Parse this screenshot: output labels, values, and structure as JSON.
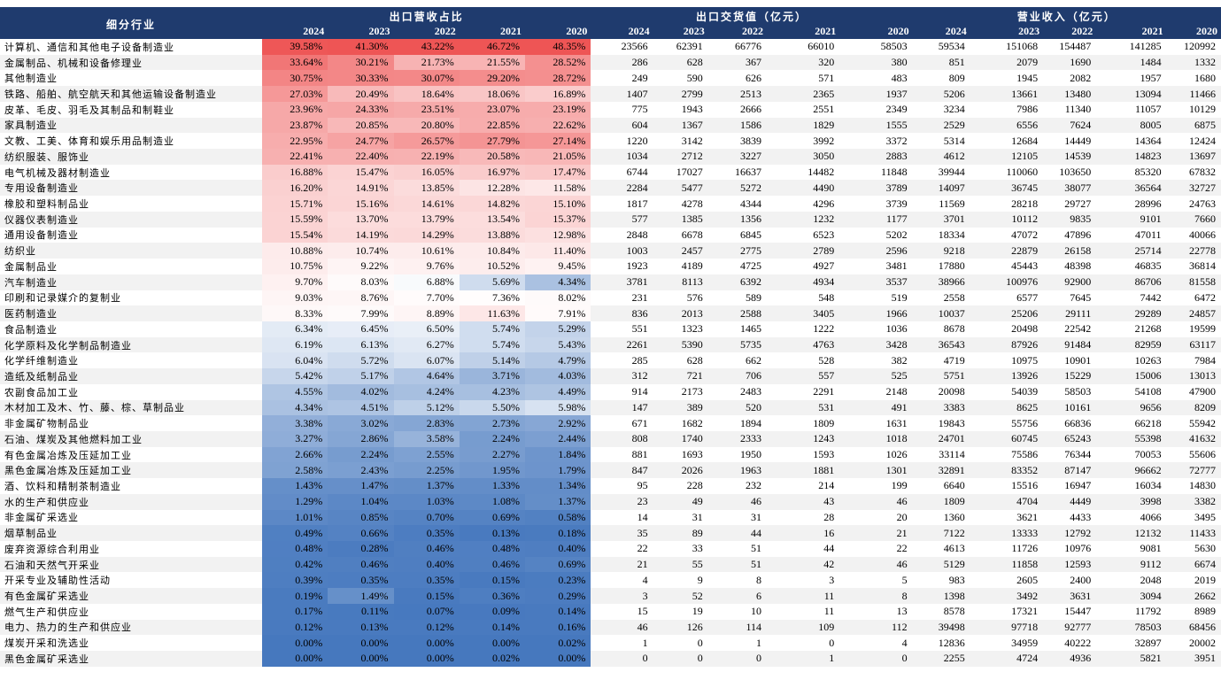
{
  "header": {
    "industry_label": "细分行业",
    "groups": [
      "出口营收占比",
      "出口交货值（亿元）",
      "营业收入（亿元）"
    ],
    "years": [
      "2024",
      "2023",
      "2022",
      "2021",
      "2020"
    ]
  },
  "rows": [
    {
      "name": "计算机、通信和其他电子设备制造业",
      "pct": [
        "39.58%",
        "41.30%",
        "43.22%",
        "46.72%",
        "48.35%"
      ],
      "exp": [
        "23566",
        "62391",
        "66776",
        "66010",
        "58503"
      ],
      "rev": [
        "59534",
        "151068",
        "154487",
        "141285",
        "120992"
      ]
    },
    {
      "name": "金属制品、机械和设备修理业",
      "pct": [
        "33.64%",
        "30.21%",
        "21.73%",
        "21.55%",
        "28.52%"
      ],
      "exp": [
        "286",
        "628",
        "367",
        "320",
        "380"
      ],
      "rev": [
        "851",
        "2079",
        "1690",
        "1484",
        "1332"
      ]
    },
    {
      "name": "其他制造业",
      "pct": [
        "30.75%",
        "30.33%",
        "30.07%",
        "29.20%",
        "28.72%"
      ],
      "exp": [
        "249",
        "590",
        "626",
        "571",
        "483"
      ],
      "rev": [
        "809",
        "1945",
        "2082",
        "1957",
        "1680"
      ]
    },
    {
      "name": "铁路、船舶、航空航天和其他运输设备制造业",
      "pct": [
        "27.03%",
        "20.49%",
        "18.64%",
        "18.06%",
        "16.89%"
      ],
      "exp": [
        "1407",
        "2799",
        "2513",
        "2365",
        "1937"
      ],
      "rev": [
        "5206",
        "13661",
        "13480",
        "13094",
        "11466"
      ]
    },
    {
      "name": "皮革、毛皮、羽毛及其制品和制鞋业",
      "pct": [
        "23.96%",
        "24.33%",
        "23.51%",
        "23.07%",
        "23.19%"
      ],
      "exp": [
        "775",
        "1943",
        "2666",
        "2551",
        "2349"
      ],
      "rev": [
        "3234",
        "7986",
        "11340",
        "11057",
        "10129"
      ]
    },
    {
      "name": "家具制造业",
      "pct": [
        "23.87%",
        "20.85%",
        "20.80%",
        "22.85%",
        "22.62%"
      ],
      "exp": [
        "604",
        "1367",
        "1586",
        "1829",
        "1555"
      ],
      "rev": [
        "2529",
        "6556",
        "7624",
        "8005",
        "6875"
      ]
    },
    {
      "name": "文教、工美、体育和娱乐用品制造业",
      "pct": [
        "22.95%",
        "24.77%",
        "26.57%",
        "27.79%",
        "27.14%"
      ],
      "exp": [
        "1220",
        "3142",
        "3839",
        "3992",
        "3372"
      ],
      "rev": [
        "5314",
        "12684",
        "14449",
        "14364",
        "12424"
      ]
    },
    {
      "name": "纺织服装、服饰业",
      "pct": [
        "22.41%",
        "22.40%",
        "22.19%",
        "20.58%",
        "21.05%"
      ],
      "exp": [
        "1034",
        "2712",
        "3227",
        "3050",
        "2883"
      ],
      "rev": [
        "4612",
        "12105",
        "14539",
        "14823",
        "13697"
      ]
    },
    {
      "name": "电气机械及器材制造业",
      "pct": [
        "16.88%",
        "15.47%",
        "16.05%",
        "16.97%",
        "17.47%"
      ],
      "exp": [
        "6744",
        "17027",
        "16637",
        "14482",
        "11848"
      ],
      "rev": [
        "39944",
        "110060",
        "103650",
        "85320",
        "67832"
      ]
    },
    {
      "name": "专用设备制造业",
      "pct": [
        "16.20%",
        "14.91%",
        "13.85%",
        "12.28%",
        "11.58%"
      ],
      "exp": [
        "2284",
        "5477",
        "5272",
        "4490",
        "3789"
      ],
      "rev": [
        "14097",
        "36745",
        "38077",
        "36564",
        "32727"
      ]
    },
    {
      "name": "橡胶和塑料制品业",
      "pct": [
        "15.71%",
        "15.16%",
        "14.61%",
        "14.82%",
        "15.10%"
      ],
      "exp": [
        "1817",
        "4278",
        "4344",
        "4296",
        "3739"
      ],
      "rev": [
        "11569",
        "28218",
        "29727",
        "28996",
        "24763"
      ]
    },
    {
      "name": "仪器仪表制造业",
      "pct": [
        "15.59%",
        "13.70%",
        "13.79%",
        "13.54%",
        "15.37%"
      ],
      "exp": [
        "577",
        "1385",
        "1356",
        "1232",
        "1177"
      ],
      "rev": [
        "3701",
        "10112",
        "9835",
        "9101",
        "7660"
      ]
    },
    {
      "name": "通用设备制造业",
      "pct": [
        "15.54%",
        "14.19%",
        "14.29%",
        "13.88%",
        "12.98%"
      ],
      "exp": [
        "2848",
        "6678",
        "6845",
        "6523",
        "5202"
      ],
      "rev": [
        "18334",
        "47072",
        "47896",
        "47011",
        "40066"
      ]
    },
    {
      "name": "纺织业",
      "pct": [
        "10.88%",
        "10.74%",
        "10.61%",
        "10.84%",
        "11.40%"
      ],
      "exp": [
        "1003",
        "2457",
        "2775",
        "2789",
        "2596"
      ],
      "rev": [
        "9218",
        "22879",
        "26158",
        "25714",
        "22778"
      ]
    },
    {
      "name": "金属制品业",
      "pct": [
        "10.75%",
        "9.22%",
        "9.76%",
        "10.52%",
        "9.45%"
      ],
      "exp": [
        "1923",
        "4189",
        "4725",
        "4927",
        "3481"
      ],
      "rev": [
        "17880",
        "45443",
        "48398",
        "46835",
        "36814"
      ]
    },
    {
      "name": "汽车制造业",
      "pct": [
        "9.70%",
        "8.03%",
        "6.88%",
        "5.69%",
        "4.34%"
      ],
      "exp": [
        "3781",
        "8113",
        "6392",
        "4934",
        "3537"
      ],
      "rev": [
        "38966",
        "100976",
        "92900",
        "86706",
        "81558"
      ]
    },
    {
      "name": "印刷和记录媒介的复制业",
      "pct": [
        "9.03%",
        "8.76%",
        "7.70%",
        "7.36%",
        "8.02%"
      ],
      "exp": [
        "231",
        "576",
        "589",
        "548",
        "519"
      ],
      "rev": [
        "2558",
        "6577",
        "7645",
        "7442",
        "6472"
      ]
    },
    {
      "name": "医药制造业",
      "pct": [
        "8.33%",
        "7.99%",
        "8.89%",
        "11.63%",
        "7.91%"
      ],
      "exp": [
        "836",
        "2013",
        "2588",
        "3405",
        "1966"
      ],
      "rev": [
        "10037",
        "25206",
        "29111",
        "29289",
        "24857"
      ]
    },
    {
      "name": "食品制造业",
      "pct": [
        "6.34%",
        "6.45%",
        "6.50%",
        "5.74%",
        "5.29%"
      ],
      "exp": [
        "551",
        "1323",
        "1465",
        "1222",
        "1036"
      ],
      "rev": [
        "8678",
        "20498",
        "22542",
        "21268",
        "19599"
      ]
    },
    {
      "name": "化学原料及化学制品制造业",
      "pct": [
        "6.19%",
        "6.13%",
        "6.27%",
        "5.74%",
        "5.43%"
      ],
      "exp": [
        "2261",
        "5390",
        "5735",
        "4763",
        "3428"
      ],
      "rev": [
        "36543",
        "87926",
        "91484",
        "82959",
        "63117"
      ]
    },
    {
      "name": "化学纤维制造业",
      "pct": [
        "6.04%",
        "5.72%",
        "6.07%",
        "5.14%",
        "4.79%"
      ],
      "exp": [
        "285",
        "628",
        "662",
        "528",
        "382"
      ],
      "rev": [
        "4719",
        "10975",
        "10901",
        "10263",
        "7984"
      ]
    },
    {
      "name": "造纸及纸制品业",
      "pct": [
        "5.42%",
        "5.17%",
        "4.64%",
        "3.71%",
        "4.03%"
      ],
      "exp": [
        "312",
        "721",
        "706",
        "557",
        "525"
      ],
      "rev": [
        "5751",
        "13926",
        "15229",
        "15006",
        "13013"
      ]
    },
    {
      "name": "农副食品加工业",
      "pct": [
        "4.55%",
        "4.02%",
        "4.24%",
        "4.23%",
        "4.49%"
      ],
      "exp": [
        "914",
        "2173",
        "2483",
        "2291",
        "2148"
      ],
      "rev": [
        "20098",
        "54039",
        "58503",
        "54108",
        "47900"
      ]
    },
    {
      "name": "木材加工及木、竹、藤、棕、草制品业",
      "pct": [
        "4.34%",
        "4.51%",
        "5.12%",
        "5.50%",
        "5.98%"
      ],
      "exp": [
        "147",
        "389",
        "520",
        "531",
        "491"
      ],
      "rev": [
        "3383",
        "8625",
        "10161",
        "9656",
        "8209"
      ]
    },
    {
      "name": "非金属矿物制品业",
      "pct": [
        "3.38%",
        "3.02%",
        "2.83%",
        "2.73%",
        "2.92%"
      ],
      "exp": [
        "671",
        "1682",
        "1894",
        "1809",
        "1631"
      ],
      "rev": [
        "19843",
        "55756",
        "66836",
        "66218",
        "55942"
      ]
    },
    {
      "name": "石油、煤炭及其他燃料加工业",
      "pct": [
        "3.27%",
        "2.86%",
        "3.58%",
        "2.24%",
        "2.44%"
      ],
      "exp": [
        "808",
        "1740",
        "2333",
        "1243",
        "1018"
      ],
      "rev": [
        "24701",
        "60745",
        "65243",
        "55398",
        "41632"
      ]
    },
    {
      "name": "有色金属冶炼及压延加工业",
      "pct": [
        "2.66%",
        "2.24%",
        "2.55%",
        "2.27%",
        "1.84%"
      ],
      "exp": [
        "881",
        "1693",
        "1950",
        "1593",
        "1026"
      ],
      "rev": [
        "33114",
        "75586",
        "76344",
        "70053",
        "55606"
      ]
    },
    {
      "name": "黑色金属冶炼及压延加工业",
      "pct": [
        "2.58%",
        "2.43%",
        "2.25%",
        "1.95%",
        "1.79%"
      ],
      "exp": [
        "847",
        "2026",
        "1963",
        "1881",
        "1301"
      ],
      "rev": [
        "32891",
        "83352",
        "87147",
        "96662",
        "72777"
      ]
    },
    {
      "name": "酒、饮料和精制茶制造业",
      "pct": [
        "1.43%",
        "1.47%",
        "1.37%",
        "1.33%",
        "1.34%"
      ],
      "exp": [
        "95",
        "228",
        "232",
        "214",
        "199"
      ],
      "rev": [
        "6640",
        "15516",
        "16947",
        "16034",
        "14830"
      ]
    },
    {
      "name": "水的生产和供应业",
      "pct": [
        "1.29%",
        "1.04%",
        "1.03%",
        "1.08%",
        "1.37%"
      ],
      "exp": [
        "23",
        "49",
        "46",
        "43",
        "46"
      ],
      "rev": [
        "1809",
        "4704",
        "4449",
        "3998",
        "3382"
      ]
    },
    {
      "name": "非金属矿采选业",
      "pct": [
        "1.01%",
        "0.85%",
        "0.70%",
        "0.69%",
        "0.58%"
      ],
      "exp": [
        "14",
        "31",
        "31",
        "28",
        "20"
      ],
      "rev": [
        "1360",
        "3621",
        "4433",
        "4066",
        "3495"
      ]
    },
    {
      "name": "烟草制品业",
      "pct": [
        "0.49%",
        "0.66%",
        "0.35%",
        "0.13%",
        "0.18%"
      ],
      "exp": [
        "35",
        "89",
        "44",
        "16",
        "21"
      ],
      "rev": [
        "7122",
        "13333",
        "12792",
        "12132",
        "11433"
      ]
    },
    {
      "name": "废弃资源综合利用业",
      "pct": [
        "0.48%",
        "0.28%",
        "0.46%",
        "0.48%",
        "0.40%"
      ],
      "exp": [
        "22",
        "33",
        "51",
        "44",
        "22"
      ],
      "rev": [
        "4613",
        "11726",
        "10976",
        "9081",
        "5630"
      ]
    },
    {
      "name": "石油和天然气开采业",
      "pct": [
        "0.42%",
        "0.46%",
        "0.40%",
        "0.46%",
        "0.69%"
      ],
      "exp": [
        "21",
        "55",
        "51",
        "42",
        "46"
      ],
      "rev": [
        "5129",
        "11858",
        "12593",
        "9112",
        "6674"
      ]
    },
    {
      "name": "开采专业及辅助性活动",
      "pct": [
        "0.39%",
        "0.35%",
        "0.35%",
        "0.15%",
        "0.23%"
      ],
      "exp": [
        "4",
        "9",
        "8",
        "3",
        "5"
      ],
      "rev": [
        "983",
        "2605",
        "2400",
        "2048",
        "2019"
      ]
    },
    {
      "name": "有色金属矿采选业",
      "pct": [
        "0.19%",
        "1.49%",
        "0.15%",
        "0.36%",
        "0.29%"
      ],
      "exp": [
        "3",
        "52",
        "6",
        "11",
        "8"
      ],
      "rev": [
        "1398",
        "3492",
        "3631",
        "3094",
        "2662"
      ]
    },
    {
      "name": "燃气生产和供应业",
      "pct": [
        "0.17%",
        "0.11%",
        "0.07%",
        "0.09%",
        "0.14%"
      ],
      "exp": [
        "15",
        "19",
        "10",
        "11",
        "13"
      ],
      "rev": [
        "8578",
        "17321",
        "15447",
        "11792",
        "8989"
      ]
    },
    {
      "name": "电力、热力的生产和供应业",
      "pct": [
        "0.12%",
        "0.13%",
        "0.12%",
        "0.14%",
        "0.16%"
      ],
      "exp": [
        "46",
        "126",
        "114",
        "109",
        "112"
      ],
      "rev": [
        "39498",
        "97718",
        "92777",
        "78503",
        "68456"
      ]
    },
    {
      "name": "煤炭开采和洗选业",
      "pct": [
        "0.00%",
        "0.00%",
        "0.00%",
        "0.00%",
        "0.02%"
      ],
      "exp": [
        "1",
        "0",
        "1",
        "0",
        "4"
      ],
      "rev": [
        "12836",
        "34959",
        "40222",
        "32897",
        "20002"
      ]
    },
    {
      "name": "黑色金属矿采选业",
      "pct": [
        "0.00%",
        "0.00%",
        "0.00%",
        "0.02%",
        "0.00%"
      ],
      "exp": [
        "0",
        "0",
        "0",
        "1",
        "0"
      ],
      "rev": [
        "2255",
        "4724",
        "4936",
        "5821",
        "3951"
      ]
    }
  ]
}
